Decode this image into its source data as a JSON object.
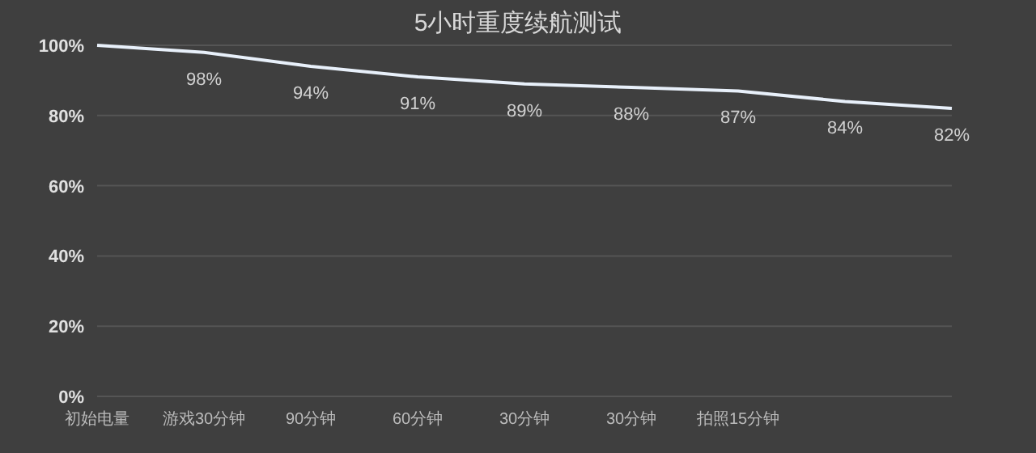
{
  "chart_data": {
    "type": "line",
    "title": "5小时重度续航测试",
    "categories": [
      "初始电量",
      "游戏30分钟",
      "90分钟",
      "60分钟",
      "30分钟",
      "30分钟",
      "拍照15分钟",
      null,
      null
    ],
    "series": [
      {
        "color": "#e8f0fa",
        "values": [
          100,
          98,
          94,
          91,
          89,
          88,
          87,
          84,
          82
        ],
        "value_labels": [
          null,
          "98%",
          "94%",
          "91%",
          "89%",
          "88%",
          "87%",
          "84%",
          "82%"
        ]
      }
    ],
    "ylim": [
      0,
      100
    ],
    "yticks": [
      {
        "value": 0,
        "label": "0%"
      },
      {
        "value": 20,
        "label": "20%"
      },
      {
        "value": 40,
        "label": "40%"
      },
      {
        "value": 60,
        "label": "60%"
      },
      {
        "value": 80,
        "label": "80%"
      },
      {
        "value": 100,
        "label": "100%"
      }
    ],
    "grid": "y",
    "marker": "none",
    "line_style": "solid"
  }
}
